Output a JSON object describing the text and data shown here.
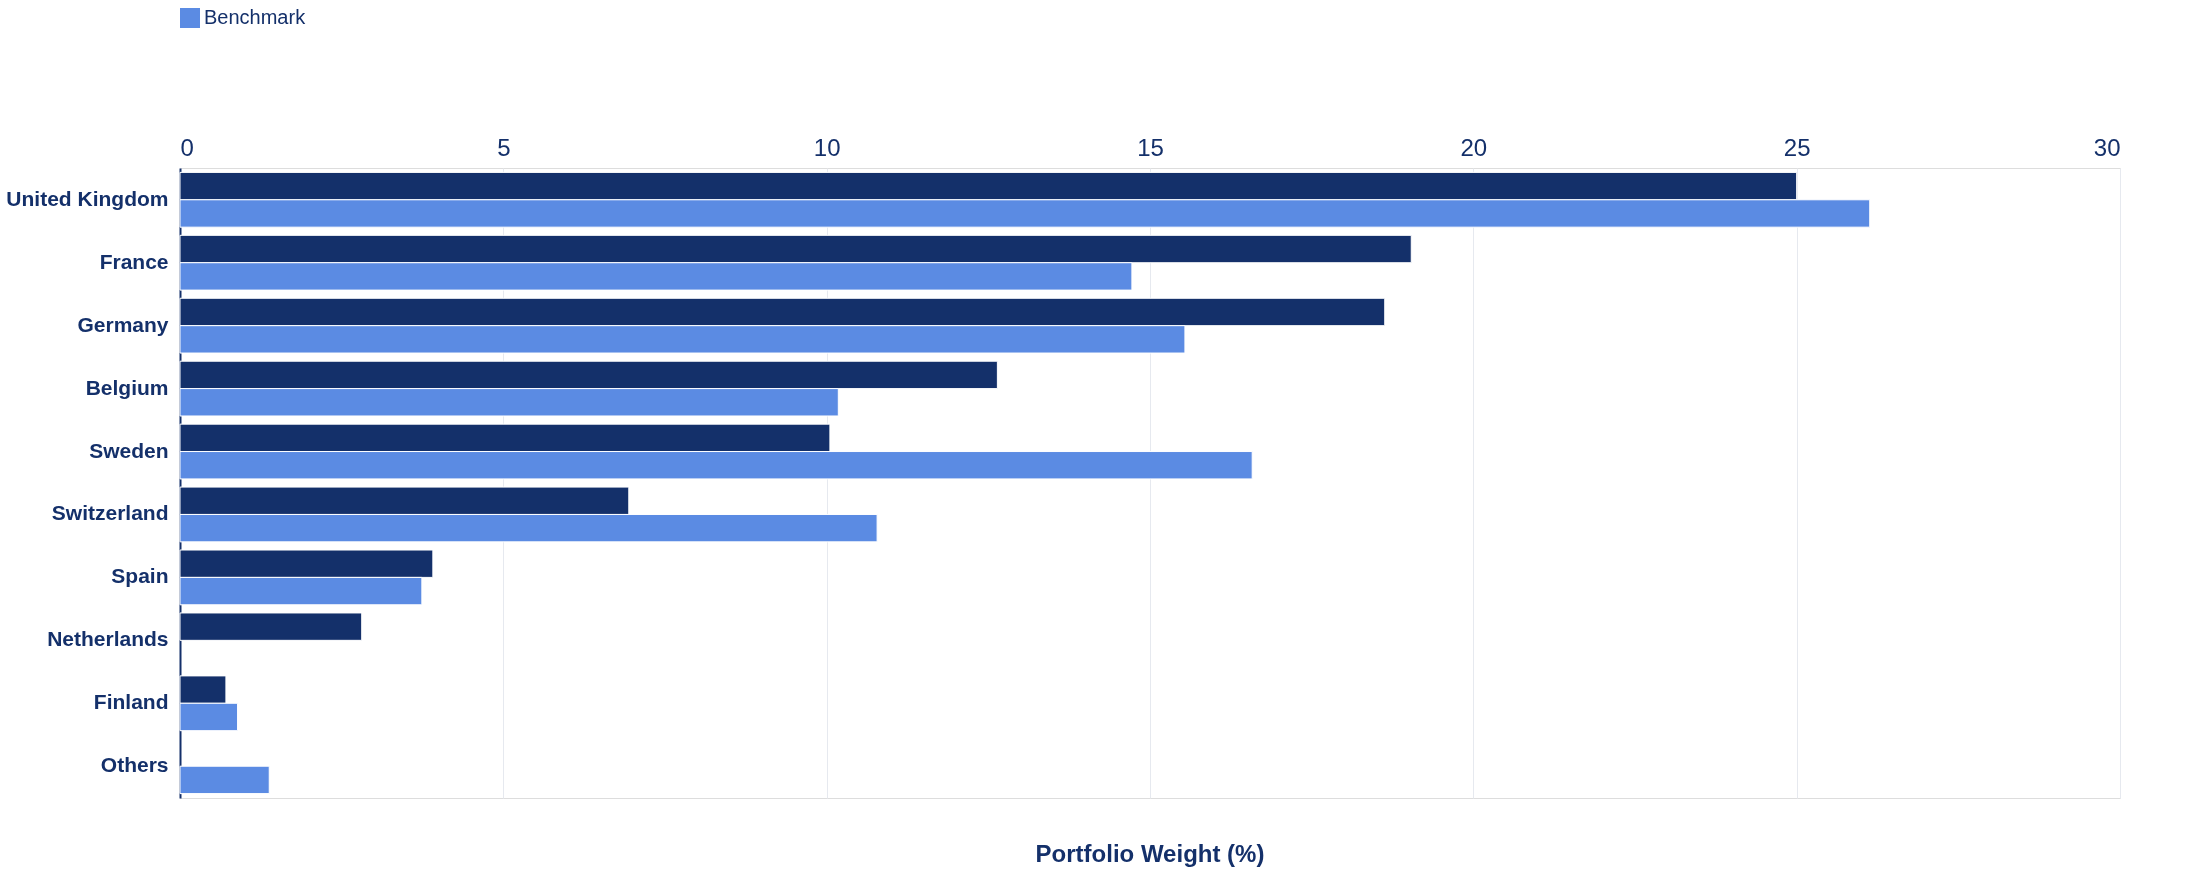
{
  "chart_data": {
    "type": "bar",
    "orientation": "horizontal",
    "xlabel": "Portfolio Weight (%)",
    "categories": [
      "United Kingdom",
      "France",
      "Germany",
      "Belgium",
      "Sweden",
      "Switzerland",
      "Spain",
      "Netherlands",
      "Finland",
      "Others"
    ],
    "series": [
      {
        "color": "#14306a",
        "values": [
          25.0,
          19.04,
          18.63,
          12.64,
          10.05,
          6.94,
          3.91,
          2.81,
          0.71,
          null
        ]
      },
      {
        "name": "Benchmark",
        "color": "#5b8be3",
        "values": [
          26.13,
          14.72,
          15.54,
          10.18,
          16.58,
          10.78,
          3.74,
          null,
          0.89,
          1.38
        ]
      }
    ],
    "xlim": [
      0,
      30
    ],
    "xticks": [
      0,
      5,
      10,
      15,
      20,
      25,
      30
    ],
    "grid": "x",
    "legend": "top left"
  }
}
